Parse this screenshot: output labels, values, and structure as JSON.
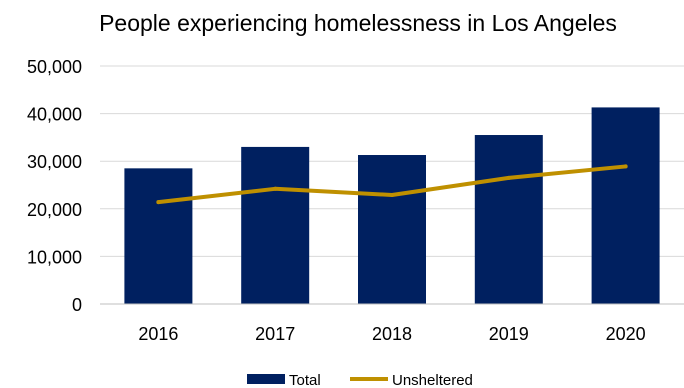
{
  "chart_data": {
    "type": "bar",
    "title": "People experiencing homelessness in Los Angeles",
    "categories": [
      "2016",
      "2017",
      "2018",
      "2019",
      "2020"
    ],
    "series": [
      {
        "name": "Total",
        "type": "bar",
        "color": "#002060",
        "values": [
          28500,
          33000,
          31300,
          35500,
          41300
        ]
      },
      {
        "name": "Unsheltered",
        "type": "line",
        "color": "#bf9000",
        "values": [
          21400,
          24200,
          22900,
          26500,
          28900
        ]
      }
    ],
    "ylim": [
      0,
      50000
    ],
    "yticks": [
      0,
      10000,
      20000,
      30000,
      40000,
      50000
    ],
    "ytick_labels": [
      "0",
      "10,000",
      "20,000",
      "30,000",
      "40,000",
      "50,000"
    ],
    "xlabel": "",
    "ylabel": "",
    "grid": true,
    "legend_position": "bottom"
  }
}
